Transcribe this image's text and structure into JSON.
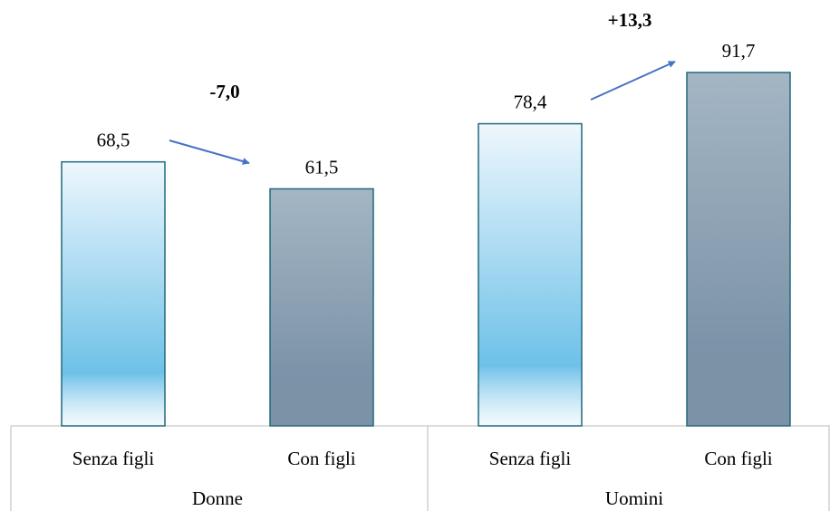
{
  "chart_data": {
    "type": "bar",
    "categories": [
      "Senza figli",
      "Con figli",
      "Senza figli",
      "Con figli"
    ],
    "groups": [
      "Donne",
      "Uomini"
    ],
    "values": [
      68.5,
      61.5,
      78.4,
      91.7
    ],
    "value_labels": [
      "68,5",
      "61,5",
      "78,4",
      "91,7"
    ],
    "colors": [
      [
        "#eef7fd",
        "#6ec1e8"
      ],
      [
        "#a4b6c4",
        "#7b92a7"
      ],
      [
        "#eef7fd",
        "#6ec1e8"
      ],
      [
        "#a4b6c4",
        "#7b92a7"
      ]
    ],
    "annotations": [
      "-7,0",
      "+13,3"
    ]
  }
}
